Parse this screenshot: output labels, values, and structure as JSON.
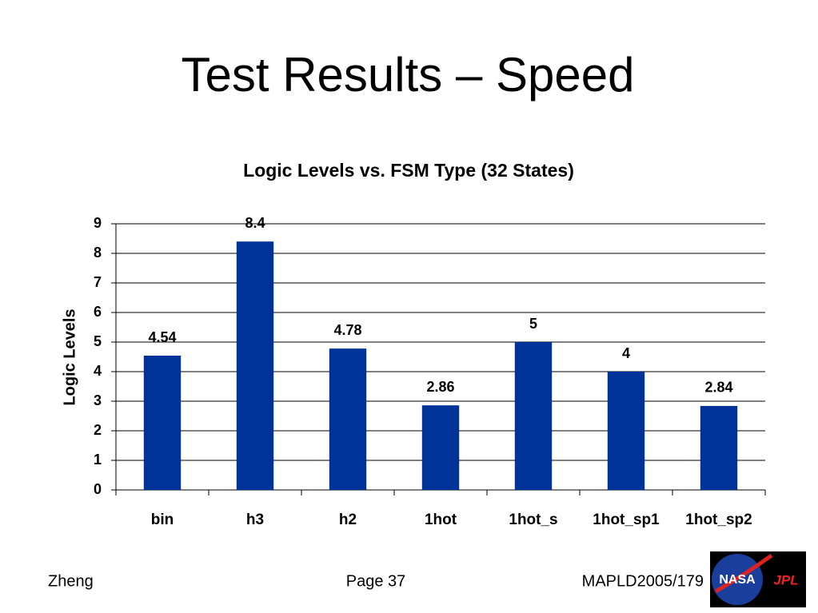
{
  "slide_title": "Test Results – Speed",
  "chart_data": {
    "type": "bar",
    "title": "Logic Levels vs. FSM Type (32 States)",
    "y_label": "Logic Levels",
    "categories": [
      "bin",
      "h3",
      "h2",
      "1hot",
      "1hot_s",
      "1hot_sp1",
      "1hot_sp2"
    ],
    "values": [
      4.54,
      8.4,
      4.78,
      2.86,
      5,
      4,
      2.84
    ],
    "color": "#003399",
    "ylim": [
      0,
      9
    ],
    "yticks": [
      0,
      1,
      2,
      3,
      4,
      5,
      6,
      7,
      8,
      9
    ],
    "grid": true
  },
  "footer": {
    "left": "Zheng",
    "center": "Page 37",
    "right": "MAPLD2005/179"
  },
  "logo": {
    "left": "NASA",
    "right": "JPL"
  }
}
